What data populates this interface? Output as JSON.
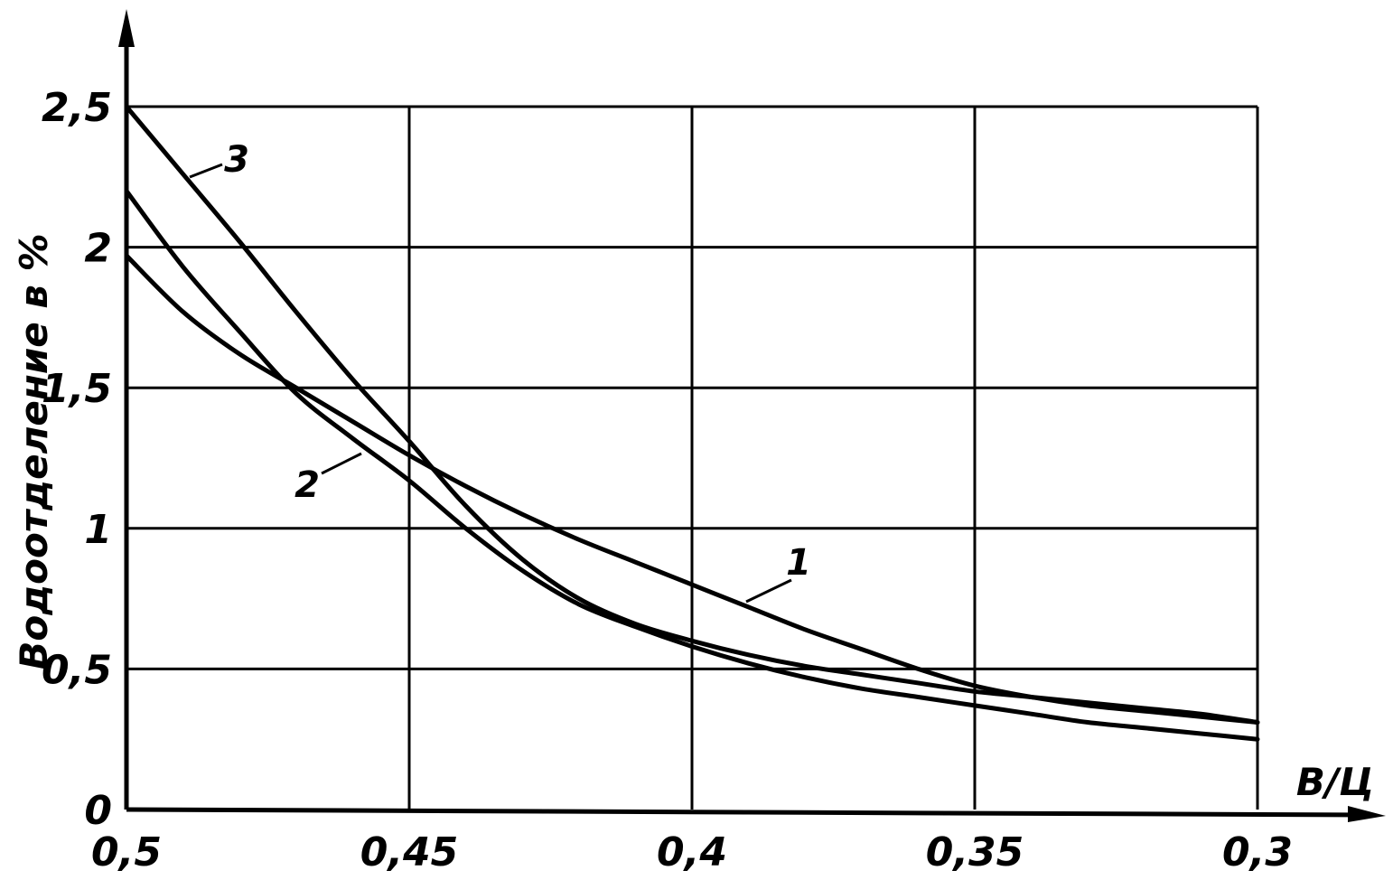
{
  "chart_data": {
    "type": "line",
    "xlabel": "В/Ц",
    "ylabel": "Водоотделение в %",
    "x_reversed": true,
    "xlim": [
      0.5,
      0.3
    ],
    "ylim": [
      0,
      2.5
    ],
    "grid": true,
    "x_ticks": [
      "0,5",
      "0,45",
      "0,4",
      "0,35",
      "0,3"
    ],
    "x_tick_values": [
      0.5,
      0.45,
      0.4,
      0.35,
      0.3
    ],
    "y_ticks": [
      "0",
      "0,5",
      "1",
      "1,5",
      "2",
      "2,5"
    ],
    "y_tick_values": [
      0,
      0.5,
      1,
      1.5,
      2,
      2.5
    ],
    "colors": {
      "line": "#000000",
      "grid": "#000000",
      "background": "#ffffff"
    },
    "series": [
      {
        "label": "1",
        "x": [
          0.5,
          0.49,
          0.48,
          0.47,
          0.46,
          0.45,
          0.44,
          0.43,
          0.42,
          0.41,
          0.4,
          0.39,
          0.38,
          0.37,
          0.36,
          0.35,
          0.34,
          0.33,
          0.32,
          0.31,
          0.3
        ],
        "y": [
          1.97,
          1.77,
          1.62,
          1.5,
          1.38,
          1.26,
          1.15,
          1.05,
          0.96,
          0.88,
          0.8,
          0.72,
          0.64,
          0.57,
          0.5,
          0.44,
          0.4,
          0.37,
          0.35,
          0.33,
          0.31
        ]
      },
      {
        "label": "2",
        "x": [
          0.5,
          0.49,
          0.48,
          0.47,
          0.46,
          0.45,
          0.44,
          0.43,
          0.42,
          0.41,
          0.4,
          0.39,
          0.38,
          0.37,
          0.36,
          0.35,
          0.34,
          0.33,
          0.32,
          0.31,
          0.3
        ],
        "y": [
          2.2,
          1.93,
          1.7,
          1.48,
          1.32,
          1.17,
          1.0,
          0.85,
          0.73,
          0.65,
          0.58,
          0.52,
          0.47,
          0.43,
          0.4,
          0.37,
          0.34,
          0.31,
          0.29,
          0.27,
          0.25
        ]
      },
      {
        "label": "3",
        "x": [
          0.5,
          0.49,
          0.48,
          0.47,
          0.46,
          0.45,
          0.44,
          0.43,
          0.42,
          0.41,
          0.4,
          0.39,
          0.38,
          0.37,
          0.36,
          0.35,
          0.34,
          0.33,
          0.32,
          0.31,
          0.3
        ],
        "y": [
          2.5,
          2.26,
          2.02,
          1.77,
          1.53,
          1.31,
          1.08,
          0.89,
          0.75,
          0.66,
          0.6,
          0.55,
          0.51,
          0.48,
          0.45,
          0.42,
          0.4,
          0.38,
          0.36,
          0.34,
          0.31
        ]
      }
    ]
  }
}
